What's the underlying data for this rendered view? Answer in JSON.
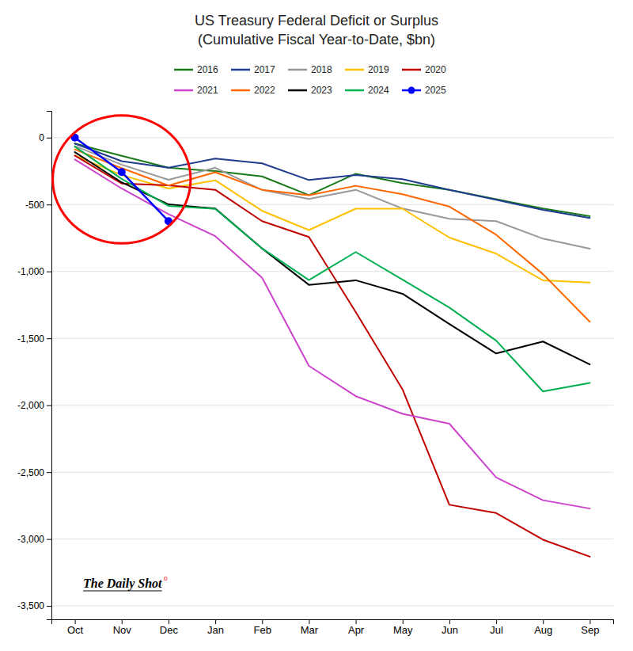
{
  "chart_data": {
    "type": "line",
    "title": "US Treasury Federal Deficit or Surplus",
    "subtitle": "(Cumulative Fiscal Year-to-Date, $bn)",
    "categories": [
      "Oct",
      "Nov",
      "Dec",
      "Jan",
      "Feb",
      "Mar",
      "Apr",
      "May",
      "Jun",
      "Jul",
      "Aug",
      "Sep"
    ],
    "series": [
      {
        "name": "2016",
        "color": "#1a7a1a",
        "values": [
          -44,
          -136,
          -225,
          -250,
          -290,
          -430,
          -270,
          -340,
          -390,
          -460,
          -530,
          -587
        ]
      },
      {
        "name": "2017",
        "color": "#1f3d8c",
        "values": [
          -44,
          -176,
          -225,
          -157,
          -192,
          -317,
          -280,
          -310,
          -390,
          -465,
          -540,
          -600
        ]
      },
      {
        "name": "2018",
        "color": "#999999",
        "values": [
          -63,
          -202,
          -315,
          -225,
          -391,
          -458,
          -390,
          -530,
          -607,
          -624,
          -755,
          -830
        ]
      },
      {
        "name": "2019",
        "color": "#ffc000",
        "values": [
          -134,
          -280,
          -380,
          -319,
          -547,
          -691,
          -531,
          -531,
          -747,
          -867,
          -1067,
          -1083
        ]
      },
      {
        "name": "2020",
        "color": "#c00000",
        "values": [
          -134,
          -343,
          -357,
          -390,
          -624,
          -743,
          -1303,
          -1882,
          -2744,
          -2806,
          -3005,
          -3132
        ]
      },
      {
        "name": "2021",
        "color": "#cc44cc",
        "values": [
          -163,
          -380,
          -572,
          -736,
          -1047,
          -1706,
          -1932,
          -2064,
          -2138,
          -2540,
          -2710,
          -2772
        ]
      },
      {
        "name": "2022",
        "color": "#ff6600",
        "values": [
          -88,
          -228,
          -358,
          -259,
          -390,
          -430,
          -360,
          -423,
          -515,
          -726,
          -1020,
          -1376
        ]
      },
      {
        "name": "2023",
        "color": "#000000",
        "values": [
          -108,
          -334,
          -499,
          -530,
          -828,
          -1100,
          -1066,
          -1167,
          -1393,
          -1613,
          -1524,
          -1695
        ]
      },
      {
        "name": "2024",
        "color": "#00b050",
        "values": [
          -67,
          -308,
          -510,
          -532,
          -828,
          -1064,
          -855,
          -1062,
          -1270,
          -1517,
          -1897,
          -1833
        ]
      },
      {
        "name": "2025",
        "color": "#0000ff",
        "marker": "circle",
        "values": [
          0,
          -257,
          -624,
          null,
          null,
          null,
          null,
          null,
          null,
          null,
          null,
          null
        ]
      }
    ],
    "ylim": [
      -3600,
      200
    ],
    "yticks": [
      0,
      -500,
      {
        "value": -1000,
        "label": "-1,000"
      },
      {
        "value": -1500,
        "label": "-1,500"
      },
      {
        "value": -2000,
        "label": "-2,000"
      },
      {
        "value": -2500,
        "label": "-2,500"
      },
      {
        "value": -3000,
        "label": "-3,000"
      },
      {
        "value": -3500,
        "label": "-3,500"
      }
    ],
    "grid": true,
    "legend": "top",
    "annotations": [
      {
        "text": "The Daily Shot"
      },
      {
        "text": "°",
        "color": "red"
      }
    ]
  }
}
